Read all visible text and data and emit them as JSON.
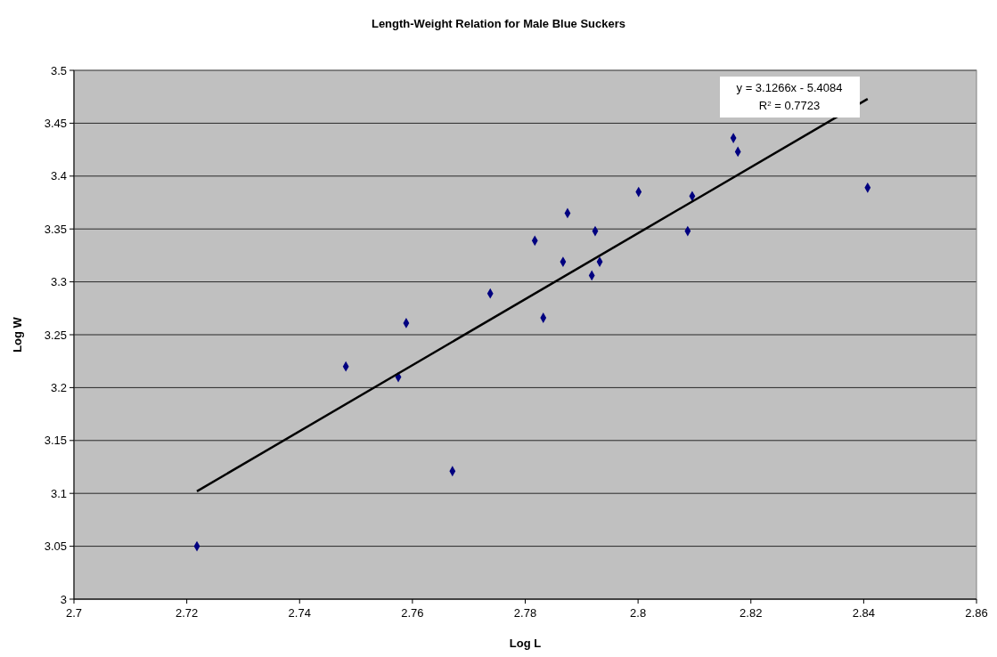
{
  "chart_data": {
    "type": "scatter",
    "title": "Length-Weight Relation for Male Blue Suckers",
    "xlabel": "Log L",
    "ylabel": "Log W",
    "xlim": [
      2.7,
      2.86
    ],
    "xticks": [
      2.7,
      2.72,
      2.74,
      2.76,
      2.78,
      2.8,
      2.82,
      2.84,
      2.86
    ],
    "ylim": [
      3,
      3.5
    ],
    "yticks": [
      3,
      3.05,
      3.1,
      3.15,
      3.2,
      3.25,
      3.3,
      3.35,
      3.4,
      3.45,
      3.5
    ],
    "grid": "y",
    "annotations": [
      "y = 3.1266x - 5.4084",
      "R$^{2}$ = 0.7723"
    ],
    "series": [
      {
        "type": "scatter",
        "color": "#000080",
        "marker": "diamond",
        "x": [
          2.7218,
          2.7482,
          2.7575,
          2.7589,
          2.7671,
          2.7738,
          2.7817,
          2.7832,
          2.7867,
          2.7875,
          2.7918,
          2.7924,
          2.7932,
          2.8001,
          2.8088,
          2.8096,
          2.8169,
          2.8177,
          2.8407
        ],
        "values": [
          3.05,
          3.22,
          3.21,
          3.261,
          3.121,
          3.289,
          3.339,
          3.266,
          3.319,
          3.365,
          3.306,
          3.348,
          3.319,
          3.385,
          3.348,
          3.381,
          3.436,
          3.423,
          3.389
        ]
      },
      {
        "type": "line",
        "color": "#000000",
        "marker": "none",
        "line_style": "solid",
        "x": [
          2.7218,
          2.8407
        ],
        "values": [
          3.102,
          3.473
        ]
      }
    ]
  }
}
